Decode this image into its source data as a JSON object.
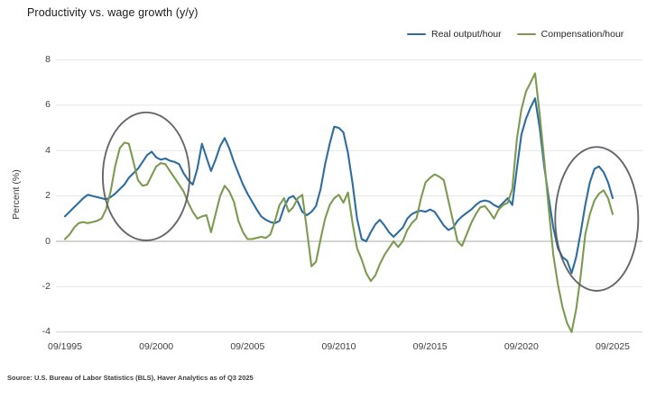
{
  "title": "Productivity vs. wage growth (y/y)",
  "source": "Source: U.S. Bureau of Labor Statistics (BLS), Haver Analytics as of Q3 2025",
  "legend": [
    {
      "label": "Real output/hour",
      "color": "#2e6d9e"
    },
    {
      "label": "Compensation/hour",
      "color": "#7c9b51"
    }
  ],
  "chart_data": {
    "type": "line",
    "title": "Productivity vs. wage growth (y/y)",
    "frequency": "quarterly",
    "x_start": "1995Q3",
    "x_end": "2025Q3",
    "x_tick_labels": [
      "09/1995",
      "09/2000",
      "09/2005",
      "09/2010",
      "09/2015",
      "09/2020",
      "09/2025"
    ],
    "xlabel": "",
    "ylabel": "Percent (%)",
    "y_ticks": [
      8,
      6,
      4,
      2,
      0,
      -2,
      -4
    ],
    "ylim": [
      -4,
      8
    ],
    "grid": "horizontal",
    "legend_position": "top-right",
    "annotation_color": "#55575c",
    "series": [
      {
        "name": "Real output/hour",
        "color": "#2e6d9e",
        "values": [
          1.1,
          1.3,
          1.5,
          1.7,
          1.9,
          2.05,
          2.0,
          1.95,
          1.9,
          1.85,
          1.95,
          2.1,
          2.3,
          2.5,
          2.8,
          3.0,
          3.2,
          3.5,
          3.8,
          3.95,
          3.7,
          3.6,
          3.65,
          3.55,
          3.5,
          3.4,
          3.0,
          2.7,
          2.5,
          3.2,
          4.3,
          3.7,
          3.1,
          3.6,
          4.2,
          4.55,
          4.1,
          3.5,
          3.0,
          2.5,
          2.1,
          1.75,
          1.4,
          1.1,
          0.95,
          0.85,
          0.8,
          0.9,
          1.5,
          1.9,
          2.0,
          1.75,
          1.3,
          1.15,
          1.3,
          1.55,
          2.3,
          3.4,
          4.3,
          5.05,
          5.0,
          4.8,
          3.9,
          2.55,
          1.0,
          0.1,
          0.0,
          0.4,
          0.75,
          0.95,
          0.7,
          0.4,
          0.2,
          0.4,
          0.6,
          1.0,
          1.2,
          1.3,
          1.35,
          1.3,
          1.4,
          1.3,
          1.0,
          0.7,
          0.5,
          0.6,
          0.9,
          1.1,
          1.25,
          1.4,
          1.6,
          1.75,
          1.8,
          1.75,
          1.6,
          1.5,
          1.7,
          1.9,
          1.6,
          3.2,
          4.7,
          5.4,
          5.9,
          6.3,
          5.0,
          3.3,
          1.9,
          0.6,
          -0.3,
          -0.7,
          -0.85,
          -1.4,
          -0.7,
          0.4,
          1.6,
          2.6,
          3.2,
          3.3,
          3.05,
          2.6,
          1.9
        ]
      },
      {
        "name": "Compensation/hour",
        "color": "#7c9b51",
        "values": [
          0.1,
          0.3,
          0.6,
          0.8,
          0.85,
          0.8,
          0.85,
          0.9,
          1.0,
          1.4,
          2.2,
          3.3,
          4.1,
          4.35,
          4.3,
          3.5,
          2.7,
          2.45,
          2.5,
          2.9,
          3.3,
          3.45,
          3.4,
          3.1,
          2.8,
          2.5,
          2.2,
          1.7,
          1.3,
          1.0,
          1.1,
          1.15,
          0.4,
          1.2,
          2.0,
          2.45,
          2.2,
          1.75,
          0.9,
          0.4,
          0.1,
          0.1,
          0.15,
          0.2,
          0.15,
          0.3,
          0.9,
          1.6,
          1.9,
          1.3,
          1.5,
          1.9,
          2.05,
          0.5,
          -1.1,
          -0.9,
          0.1,
          1.0,
          1.6,
          1.9,
          2.05,
          1.7,
          2.15,
          0.8,
          -0.3,
          -0.8,
          -1.4,
          -1.75,
          -1.5,
          -1.0,
          -0.6,
          -0.3,
          0.0,
          -0.25,
          0.0,
          0.5,
          0.8,
          1.0,
          1.9,
          2.6,
          2.8,
          2.95,
          2.85,
          2.7,
          1.8,
          0.9,
          0.0,
          -0.2,
          0.3,
          0.8,
          1.2,
          1.5,
          1.55,
          1.3,
          1.0,
          1.4,
          1.6,
          1.7,
          2.3,
          4.5,
          5.8,
          6.6,
          7.0,
          7.4,
          5.6,
          3.6,
          1.4,
          -0.6,
          -1.9,
          -2.9,
          -3.6,
          -4.0,
          -3.0,
          -1.5,
          0.3,
          1.2,
          1.8,
          2.1,
          2.25,
          1.9,
          1.2
        ]
      }
    ],
    "annotations": [
      {
        "type": "ellipse",
        "label": "highlight-1998-2001",
        "x_quarter_index": 17.8,
        "y_value": 2.86,
        "rx_quarters": 9.5,
        "ry_values": 2.82
      },
      {
        "type": "ellipse",
        "label": "highlight-2023-2025",
        "x_quarter_index": 116.5,
        "y_value": 0.99,
        "rx_quarters": 9.1,
        "ry_values": 3.17
      }
    ]
  }
}
